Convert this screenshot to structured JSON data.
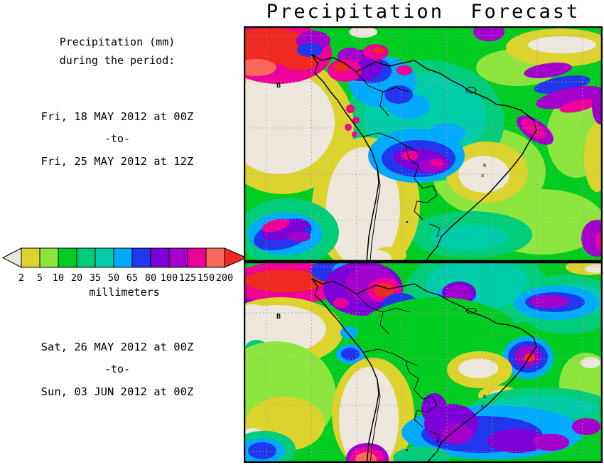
{
  "title": "Precipitation Forecast",
  "sidebar": {
    "heading_line1": "Precipitation (mm)",
    "heading_line2": "during the period:",
    "period1": {
      "start": "Fri, 18 MAY 2012 at 00Z",
      "separator": "-to-",
      "end": "Fri, 25 MAY 2012 at 12Z"
    },
    "period2": {
      "start": "Sat, 26 MAY 2012 at 00Z",
      "separator": "-to-",
      "end": "Sun, 03 JUN 2012 at 00Z"
    }
  },
  "legend": {
    "unit_label": "millimeters",
    "thresholds": [
      "2",
      "5",
      "10",
      "20",
      "35",
      "50",
      "65",
      "80",
      "100",
      "125",
      "150",
      "200"
    ],
    "below_min_color": "#ece6dc",
    "above_max_color": "#ee2a22",
    "band_colors": [
      "#dcd32e",
      "#8ce63e",
      "#00cc22",
      "#00cc7a",
      "#00ccaa",
      "#00aaff",
      "#2236ee",
      "#7d00d6",
      "#a400cc",
      "#ee0099",
      "#f8695c"
    ]
  },
  "maps": {
    "low_label": "B",
    "marker_b": "b",
    "marker_x": "x",
    "marker_arrow": "◄"
  },
  "colors": {
    "background": "#ffffff",
    "text": "#000000",
    "grid": "#b09a9a",
    "coastline": "#000000"
  }
}
